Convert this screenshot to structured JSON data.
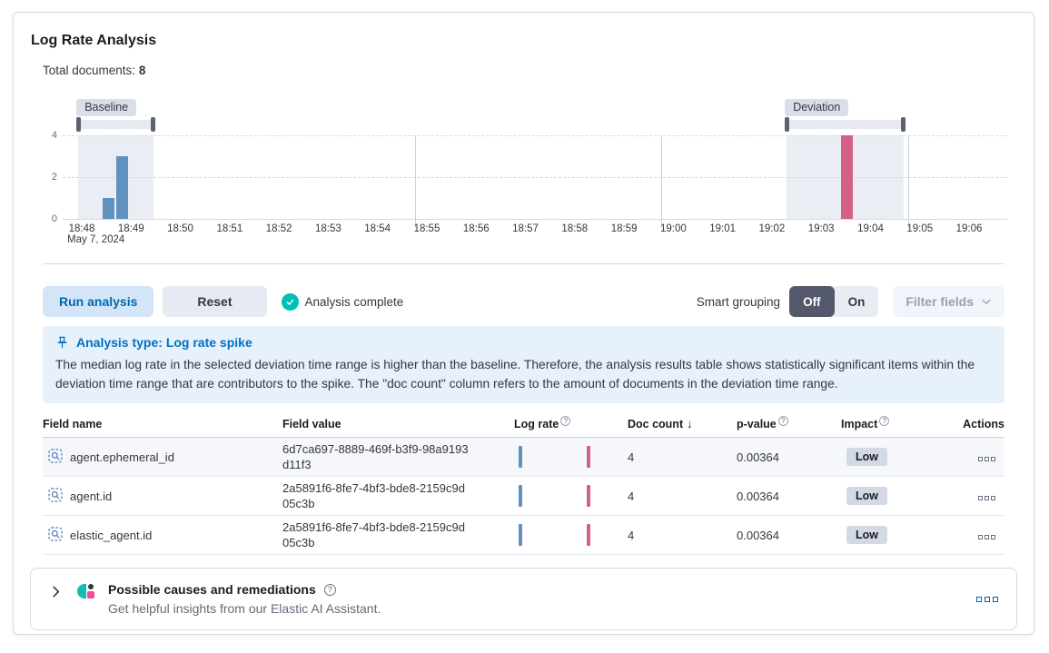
{
  "panel": {
    "title": "Log Rate Analysis",
    "total_documents_label": "Total documents:",
    "total_documents_value": "8"
  },
  "chart_data": {
    "type": "bar",
    "title": "Log rate histogram",
    "x_tick_labels": [
      "18:48",
      "18:49",
      "18:50",
      "18:51",
      "18:52",
      "18:53",
      "18:54",
      "18:55",
      "18:56",
      "18:57",
      "18:58",
      "18:59",
      "19:00",
      "19:01",
      "19:02",
      "19:03",
      "19:04",
      "19:05",
      "19:06"
    ],
    "x_first_tick_sub_label": "May 7, 2024",
    "y_ticks": [
      0,
      2,
      4
    ],
    "ylim": [
      0,
      4
    ],
    "grid": true,
    "vertical_gridline_ticks": [
      "18:55",
      "19:00",
      "19:05"
    ],
    "bars": [
      {
        "x_idx": 0.55,
        "value": 1,
        "series": "baseline",
        "color": "#6092C0"
      },
      {
        "x_idx": 0.82,
        "value": 3,
        "series": "baseline",
        "color": "#6092C0"
      },
      {
        "x_idx": 15.52,
        "value": 4,
        "series": "deviation",
        "color": "#D36086"
      }
    ],
    "brushes": [
      {
        "label": "Baseline",
        "from_idx": -0.07,
        "to_idx": 1.45
      },
      {
        "label": "Deviation",
        "from_idx": 14.3,
        "to_idx": 16.68
      }
    ]
  },
  "controls": {
    "run_button": "Run analysis",
    "reset_button": "Reset",
    "status_text": "Analysis complete",
    "smart_grouping_label": "Smart grouping",
    "toggle_off": "Off",
    "toggle_on": "On",
    "filter_fields_button": "Filter fields"
  },
  "callout": {
    "title": "Analysis type: Log rate spike",
    "body": "The median log rate in the selected deviation time range is higher than the baseline. Therefore, the analysis results table shows statistically significant items within the deviation time range that are contributors to the spike. The \"doc count\" column refers to the amount of documents in the deviation time range."
  },
  "table": {
    "columns": [
      {
        "label": "Field name"
      },
      {
        "label": "Field value"
      },
      {
        "label": "Log rate",
        "info": true
      },
      {
        "label": "Doc count",
        "sort": "desc"
      },
      {
        "label": "p-value",
        "info": true
      },
      {
        "label": "Impact",
        "info": true
      },
      {
        "label": "Actions",
        "align": "right"
      }
    ],
    "rows": [
      {
        "field_name": "agent.ephemeral_id",
        "field_value": "6d7ca697-8889-469f-b3f9-98a9193d11f3",
        "doc_count": "4",
        "p_value": "0.00364",
        "impact": "Low",
        "highlighted": true
      },
      {
        "field_name": "agent.id",
        "field_value": "2a5891f6-8fe7-4bf3-bde8-2159c9d05c3b",
        "doc_count": "4",
        "p_value": "0.00364",
        "impact": "Low",
        "highlighted": false
      },
      {
        "field_name": "elastic_agent.id",
        "field_value": "2a5891f6-8fe7-4bf3-bde8-2159c9d05c3b",
        "doc_count": "4",
        "p_value": "0.00364",
        "impact": "Low",
        "highlighted": false
      }
    ]
  },
  "assistant_panel": {
    "title": "Possible causes and remediations",
    "subtitle": "Get helpful insights from our Elastic AI Assistant."
  },
  "colors": {
    "baseline_bar": "#6092C0",
    "deviation_bar": "#D36086",
    "primary_blue": "#0071C2",
    "success_green": "#00BFB3"
  }
}
